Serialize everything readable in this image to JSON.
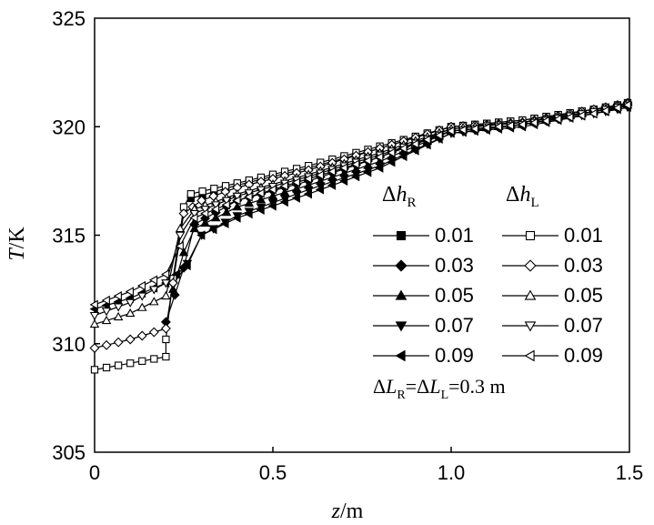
{
  "chart_data": {
    "type": "line",
    "x_axis": {
      "label_italic": "z",
      "label_unit": "/m",
      "range": [
        0,
        1.5
      ],
      "ticks": [
        "0",
        "0.5",
        "1.0",
        "1.5"
      ],
      "tick_values": [
        0,
        0.5,
        1.0,
        1.5
      ]
    },
    "y_axis": {
      "label_italic": "T",
      "label_unit": "/K",
      "range": [
        305,
        325
      ],
      "ticks": [
        "305",
        "310",
        "315",
        "320",
        "325"
      ],
      "tick_values": [
        305,
        310,
        315,
        320,
        325
      ]
    },
    "grid": false,
    "legend_placement": "right-middle",
    "legend": {
      "col1_head": {
        "delta": "Δ",
        "var": "h",
        "sub": "R"
      },
      "col2_head": {
        "delta": "Δ",
        "var": "h",
        "sub": "L"
      },
      "col1_labels": [
        "0.01",
        "0.03",
        "0.05",
        "0.07",
        "0.09"
      ],
      "col2_labels": [
        "0.01",
        "0.03",
        "0.05",
        "0.07",
        "0.09"
      ]
    },
    "annotation": {
      "d1": "Δ",
      "L1": "L",
      "s1": "R",
      "eq": "=",
      "d2": "Δ",
      "L2": "L",
      "s2": "L",
      "val": "=0.3 m"
    },
    "series": [
      {
        "side": "R",
        "dh": "0.01",
        "marker": "square",
        "fill": "filled",
        "points": [
          [
            0.27,
            316.7
          ],
          [
            0.4,
            317.3
          ],
          [
            0.6,
            318.1
          ],
          [
            0.8,
            319.0
          ],
          [
            1.0,
            320.0
          ],
          [
            1.2,
            320.3
          ],
          [
            1.4,
            320.8
          ],
          [
            1.5,
            321.0
          ]
        ]
      },
      {
        "side": "R",
        "dh": "0.03",
        "marker": "diamond",
        "fill": "filled",
        "points": [
          [
            0.2,
            311.0
          ],
          [
            0.25,
            313.5
          ],
          [
            0.28,
            315.5
          ],
          [
            0.4,
            316.6
          ],
          [
            0.6,
            317.5
          ],
          [
            0.8,
            318.6
          ],
          [
            1.0,
            319.9
          ],
          [
            1.2,
            320.2
          ],
          [
            1.4,
            320.7
          ],
          [
            1.5,
            321.0
          ]
        ]
      },
      {
        "side": "R",
        "dh": "0.05",
        "marker": "triangle-up",
        "fill": "filled",
        "points": [
          [
            0.22,
            312.5
          ],
          [
            0.25,
            314.2
          ],
          [
            0.28,
            315.3
          ],
          [
            0.4,
            316.3
          ],
          [
            0.6,
            317.3
          ],
          [
            0.8,
            318.4
          ],
          [
            1.0,
            319.8
          ],
          [
            1.2,
            320.1
          ],
          [
            1.4,
            320.7
          ],
          [
            1.5,
            321.0
          ]
        ]
      },
      {
        "side": "R",
        "dh": "0.07",
        "marker": "triangle-down",
        "fill": "filled",
        "points": [
          [
            0.22,
            312.7
          ],
          [
            0.26,
            313.7
          ],
          [
            0.3,
            315.0
          ],
          [
            0.4,
            315.9
          ],
          [
            0.6,
            317.1
          ],
          [
            0.8,
            318.2
          ],
          [
            1.0,
            319.7
          ],
          [
            1.2,
            320.1
          ],
          [
            1.4,
            320.6
          ],
          [
            1.5,
            320.9
          ]
        ]
      },
      {
        "side": "R",
        "dh": "0.09",
        "marker": "triangle-left",
        "fill": "filled",
        "points": [
          [
            0.0,
            311.6
          ],
          [
            0.1,
            312.1
          ],
          [
            0.2,
            312.8
          ],
          [
            0.26,
            313.6
          ],
          [
            0.3,
            315.0
          ],
          [
            0.4,
            315.8
          ],
          [
            0.6,
            316.9
          ],
          [
            0.8,
            318.1
          ],
          [
            1.0,
            319.7
          ],
          [
            1.2,
            320.0
          ],
          [
            1.4,
            320.6
          ],
          [
            1.5,
            320.9
          ]
        ]
      },
      {
        "side": "L",
        "dh": "0.01",
        "marker": "square",
        "fill": "open",
        "points": [
          [
            0.0,
            308.8
          ],
          [
            0.1,
            309.1
          ],
          [
            0.2,
            309.4
          ],
          [
            0.2,
            310.2
          ],
          [
            0.22,
            313.0
          ],
          [
            0.25,
            316.3
          ],
          [
            0.27,
            316.9
          ],
          [
            0.4,
            317.4
          ],
          [
            0.6,
            318.2
          ],
          [
            0.8,
            319.1
          ],
          [
            1.0,
            320.0
          ],
          [
            1.2,
            320.3
          ],
          [
            1.4,
            320.8
          ],
          [
            1.5,
            321.1
          ]
        ]
      },
      {
        "side": "L",
        "dh": "0.03",
        "marker": "diamond",
        "fill": "open",
        "points": [
          [
            0.0,
            309.8
          ],
          [
            0.1,
            310.2
          ],
          [
            0.2,
            310.7
          ],
          [
            0.22,
            312.8
          ],
          [
            0.25,
            316.0
          ],
          [
            0.3,
            316.6
          ],
          [
            0.4,
            317.2
          ],
          [
            0.6,
            318.0
          ],
          [
            0.8,
            319.0
          ],
          [
            1.0,
            320.0
          ],
          [
            1.2,
            320.2
          ],
          [
            1.4,
            320.8
          ],
          [
            1.5,
            321.1
          ]
        ]
      },
      {
        "side": "L",
        "dh": "0.05",
        "marker": "triangle-up",
        "fill": "open",
        "points": [
          [
            0.0,
            310.9
          ],
          [
            0.1,
            311.4
          ],
          [
            0.2,
            312.2
          ],
          [
            0.24,
            315.3
          ],
          [
            0.28,
            316.2
          ],
          [
            0.4,
            316.9
          ],
          [
            0.6,
            317.8
          ],
          [
            0.8,
            318.8
          ],
          [
            1.0,
            319.9
          ],
          [
            1.2,
            320.2
          ],
          [
            1.4,
            320.7
          ],
          [
            1.5,
            321.1
          ]
        ]
      },
      {
        "side": "L",
        "dh": "0.07",
        "marker": "triangle-down",
        "fill": "open",
        "points": [
          [
            0.0,
            311.3
          ],
          [
            0.1,
            311.9
          ],
          [
            0.2,
            312.8
          ],
          [
            0.24,
            315.0
          ],
          [
            0.28,
            316.0
          ],
          [
            0.4,
            316.8
          ],
          [
            0.6,
            317.7
          ],
          [
            0.8,
            318.7
          ],
          [
            1.0,
            319.8
          ],
          [
            1.2,
            320.1
          ],
          [
            1.4,
            320.7
          ],
          [
            1.5,
            321.0
          ]
        ]
      },
      {
        "side": "L",
        "dh": "0.09",
        "marker": "triangle-left",
        "fill": "open",
        "points": [
          [
            0.0,
            311.8
          ],
          [
            0.1,
            312.4
          ],
          [
            0.2,
            313.2
          ],
          [
            0.24,
            314.5
          ],
          [
            0.28,
            315.8
          ],
          [
            0.4,
            316.6
          ],
          [
            0.6,
            317.6
          ],
          [
            0.8,
            318.6
          ],
          [
            1.0,
            319.8
          ],
          [
            1.2,
            320.1
          ],
          [
            1.4,
            320.6
          ],
          [
            1.5,
            321.0
          ]
        ]
      }
    ]
  }
}
